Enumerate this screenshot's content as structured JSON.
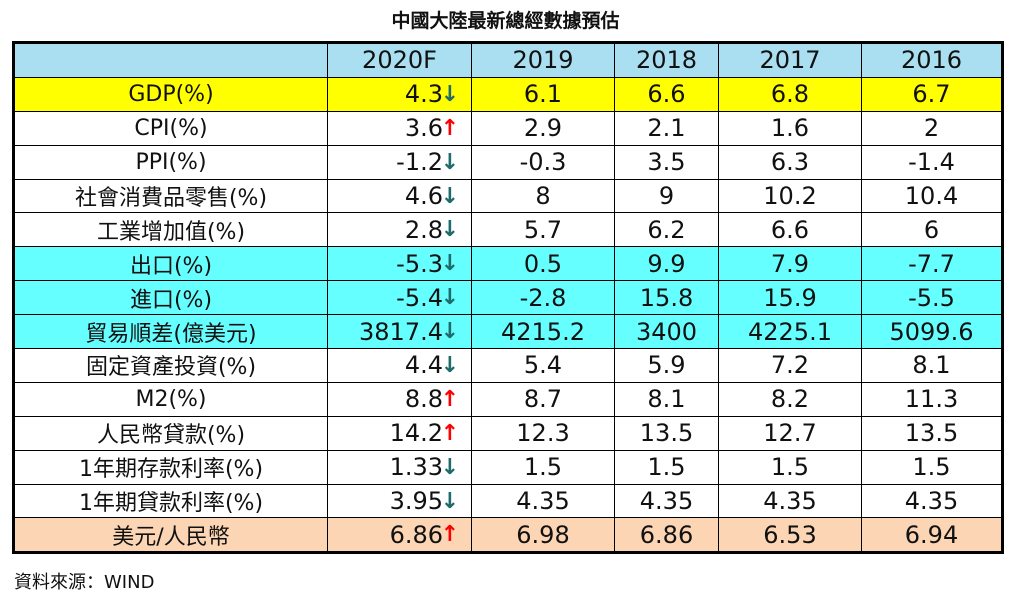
{
  "title": "中國大陸最新總經數據預估",
  "columns": [
    "",
    "2020F",
    "2019",
    "2018",
    "2017",
    "2016"
  ],
  "rows": [
    {
      "label": "GDP(%)",
      "values": [
        "4.3",
        "6.1",
        "6.6",
        "6.8",
        "6.7"
      ],
      "trend": "down",
      "bg": "#ffff00"
    },
    {
      "label": "CPI(%)",
      "values": [
        "3.6",
        "2.9",
        "2.1",
        "1.6",
        "2"
      ],
      "trend": "up",
      "bg": "#ffffff"
    },
    {
      "label": "PPI(%)",
      "values": [
        "-1.2",
        "-0.3",
        "3.5",
        "6.3",
        "-1.4"
      ],
      "trend": "down",
      "bg": "#ffffff"
    },
    {
      "label": "社會消費品零售(%)",
      "values": [
        "4.6",
        "8",
        "9",
        "10.2",
        "10.4"
      ],
      "trend": "down",
      "bg": "#ffffff"
    },
    {
      "label": "工業增加值(%)",
      "values": [
        "2.8",
        "5.7",
        "6.2",
        "6.6",
        "6"
      ],
      "trend": "down",
      "bg": "#ffffff"
    },
    {
      "label": "出口(%)",
      "values": [
        "-5.3",
        "0.5",
        "9.9",
        "7.9",
        "-7.7"
      ],
      "trend": "down",
      "bg": "#66ffff"
    },
    {
      "label": "進口(%)",
      "values": [
        "-5.4",
        "-2.8",
        "15.8",
        "15.9",
        "-5.5"
      ],
      "trend": "down",
      "bg": "#66ffff"
    },
    {
      "label": "貿易順差(億美元)",
      "values": [
        "3817.4",
        "4215.2",
        "3400",
        "4225.1",
        "5099.6"
      ],
      "trend": "down",
      "bg": "#66ffff"
    },
    {
      "label": "固定資產投資(%)",
      "values": [
        "4.4",
        "5.4",
        "5.9",
        "7.2",
        "8.1"
      ],
      "trend": "down",
      "bg": "#ffffff"
    },
    {
      "label": "M2(%)",
      "values": [
        "8.8",
        "8.7",
        "8.1",
        "8.2",
        "11.3"
      ],
      "trend": "up",
      "bg": "#ffffff"
    },
    {
      "label": "人民幣貸款(%)",
      "values": [
        "14.2",
        "12.3",
        "13.5",
        "12.7",
        "13.5"
      ],
      "trend": "up",
      "bg": "#ffffff"
    },
    {
      "label": "1年期存款利率(%)",
      "values": [
        "1.33",
        "1.5",
        "1.5",
        "1.5",
        "1.5"
      ],
      "trend": "down",
      "bg": "#ffffff"
    },
    {
      "label": "1年期貸款利率(%)",
      "values": [
        "3.95",
        "4.35",
        "4.35",
        "4.35",
        "4.35"
      ],
      "trend": "down",
      "bg": "#ffffff"
    },
    {
      "label": "美元/人民幣",
      "values": [
        "6.86",
        "6.98",
        "6.86",
        "6.53",
        "6.94"
      ],
      "trend": "up",
      "bg": "#fcd5b4"
    }
  ],
  "source": "資料來源：WIND",
  "chart_data": {
    "type": "table",
    "title": "中國大陸最新總經數據預估",
    "columns": [
      "2020F",
      "2019",
      "2018",
      "2017",
      "2016"
    ]
  }
}
